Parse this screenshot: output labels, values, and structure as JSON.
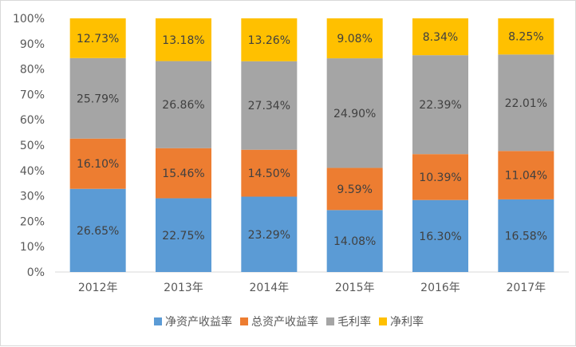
{
  "chart_data": {
    "type": "bar",
    "stacked": "percent",
    "categories": [
      "2012年",
      "2013年",
      "2014年",
      "2015年",
      "2016年",
      "2017年"
    ],
    "series": [
      {
        "name": "净资产收益率",
        "color": "#5b9bd5",
        "values": [
          26.65,
          22.75,
          23.29,
          14.08,
          16.3,
          16.58
        ],
        "labels": [
          "26.65%",
          "22.75%",
          "23.29%",
          "14.08%",
          "16.30%",
          "16.58%"
        ]
      },
      {
        "name": "总资产收益率",
        "color": "#ed7d31",
        "values": [
          16.1,
          15.46,
          14.5,
          9.59,
          10.39,
          11.04
        ],
        "labels": [
          "16.10%",
          "15.46%",
          "14.50%",
          "9.59%",
          "10.39%",
          "11.04%"
        ]
      },
      {
        "name": "毛利率",
        "color": "#a5a5a5",
        "values": [
          25.79,
          26.86,
          27.34,
          24.9,
          22.39,
          22.01
        ],
        "labels": [
          "25.79%",
          "26.86%",
          "27.34%",
          "24.90%",
          "22.39%",
          "22.01%"
        ]
      },
      {
        "name": "净利率",
        "color": "#ffc000",
        "values": [
          12.73,
          13.18,
          13.26,
          9.08,
          8.34,
          8.25
        ],
        "labels": [
          "12.73%",
          "13.18%",
          "13.26%",
          "9.08%",
          "8.34%",
          "8.25%"
        ]
      }
    ],
    "ylim": [
      0,
      100
    ],
    "yticks": [
      "0%",
      "10%",
      "20%",
      "30%",
      "40%",
      "50%",
      "60%",
      "70%",
      "80%",
      "90%",
      "100%"
    ],
    "grid": false,
    "legend": "bottom"
  }
}
